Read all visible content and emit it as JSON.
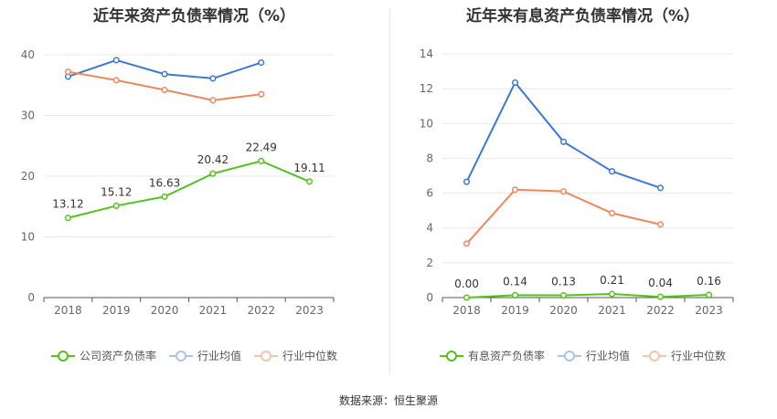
{
  "chart_data": [
    {
      "type": "line",
      "title": "近年来资产负债率情况（%）",
      "categories": [
        "2018",
        "2019",
        "2020",
        "2021",
        "2022",
        "2023"
      ],
      "yticks": [
        "0",
        "10",
        "20",
        "30",
        "40"
      ],
      "ylim": [
        0,
        43
      ],
      "series": [
        {
          "name": "公司资产负债率",
          "color": "#52c41a",
          "values": [
            13.12,
            15.12,
            16.63,
            20.42,
            22.49,
            19.11
          ],
          "labels": [
            "13.12",
            "15.12",
            "16.63",
            "20.42",
            "22.49",
            "19.11"
          ]
        },
        {
          "name": "行业均值",
          "color": "#3b78d8",
          "values": [
            36.4,
            39.1,
            36.8,
            36.1,
            38.7,
            null
          ]
        },
        {
          "name": "行业中位数",
          "color": "#f0875a",
          "values": [
            37.2,
            35.8,
            34.2,
            32.5,
            33.5,
            null
          ]
        }
      ]
    },
    {
      "type": "line",
      "title": "近年来有息资产负债率情况（%）",
      "categories": [
        "2018",
        "2019",
        "2020",
        "2021",
        "2022",
        "2023"
      ],
      "yticks": [
        "0",
        "2",
        "4",
        "6",
        "8",
        "10",
        "12",
        "14"
      ],
      "ylim": [
        0,
        14
      ],
      "series": [
        {
          "name": "有息资产负债率",
          "color": "#52c41a",
          "values": [
            0.0,
            0.14,
            0.13,
            0.21,
            0.04,
            0.16
          ],
          "labels": [
            "0.00",
            "0.14",
            "0.13",
            "0.21",
            "0.04",
            "0.16"
          ]
        },
        {
          "name": "行业均值",
          "color": "#3b78d8",
          "values": [
            6.65,
            12.35,
            8.95,
            7.25,
            6.3,
            null
          ]
        },
        {
          "name": "行业中位数",
          "color": "#f0875a",
          "values": [
            3.1,
            6.2,
            6.1,
            4.85,
            4.2,
            null
          ]
        }
      ]
    }
  ],
  "footer": {
    "source": "数据来源：恒生聚源"
  }
}
